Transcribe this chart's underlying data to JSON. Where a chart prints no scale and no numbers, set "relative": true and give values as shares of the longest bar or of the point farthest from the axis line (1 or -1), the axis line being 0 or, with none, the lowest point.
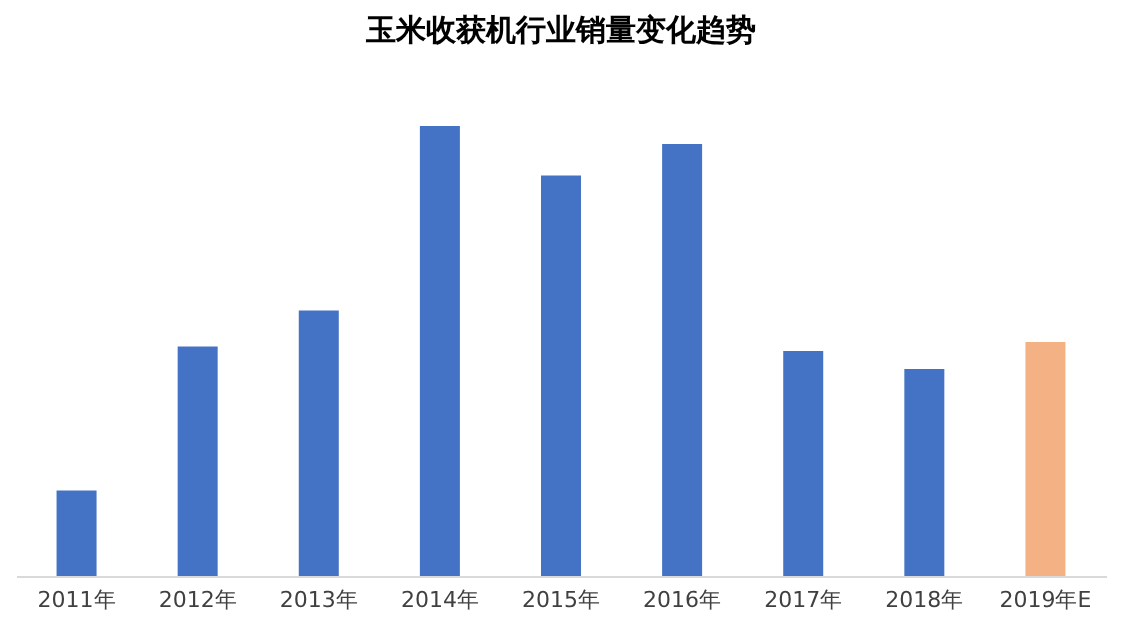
{
  "chart_data": {
    "type": "bar",
    "title": "玉米收获机行业销量变化趋势",
    "categories": [
      "2011年",
      "2012年",
      "2013年",
      "2014年",
      "2015年",
      "2016年",
      "2017年",
      "2018年",
      "2019年E"
    ],
    "values": [
      0.19,
      0.51,
      0.59,
      1,
      0.89,
      0.96,
      0.5,
      0.46,
      0.52
    ],
    "colors": [
      "#4472c4",
      "#4472c4",
      "#4472c4",
      "#4472c4",
      "#4472c4",
      "#4472c4",
      "#4472c4",
      "#4472c4",
      "#f4b183"
    ],
    "relative": true,
    "grid": false,
    "legend": false
  }
}
